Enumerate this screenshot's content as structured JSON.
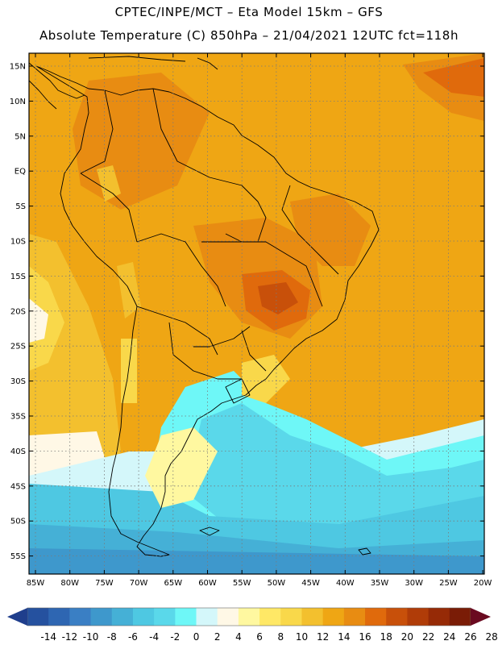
{
  "header": {
    "title_line1": "CPTEC/INPE/MCT –  Eta Model 15km – GFS",
    "title_line2": "Absolute Temperature (C) 850hPa – 21/04/2021 12UTC fct=118h"
  },
  "map": {
    "lat_labels": [
      "15N",
      "10N",
      "5N",
      "EQ",
      "5S",
      "10S",
      "15S",
      "20S",
      "25S",
      "30S",
      "35S",
      "40S",
      "45S",
      "50S",
      "55S"
    ],
    "lon_labels": [
      "85W",
      "80W",
      "75W",
      "70W",
      "65W",
      "60W",
      "55W",
      "50W",
      "45W",
      "40W",
      "35W",
      "30W",
      "25W",
      "20W"
    ]
  },
  "colorbar": {
    "colors": [
      "#1f3e8c",
      "#25519f",
      "#2e66b2",
      "#3a7fc4",
      "#3e98cc",
      "#45b0d6",
      "#4ec8e2",
      "#5ad8ea",
      "#6ef7f7",
      "#d4f7fa",
      "#fff8e6",
      "#fff8a0",
      "#ffe866",
      "#f9d84a",
      "#f3c02e",
      "#efa614",
      "#e88c12",
      "#e06a0c",
      "#c8500a",
      "#b03c08",
      "#962a06",
      "#7a1c06",
      "#6a0a20"
    ],
    "labels": [
      "-14",
      "-12",
      "-10",
      "-8",
      "-6",
      "-4",
      "-2",
      "0",
      "2",
      "4",
      "6",
      "8",
      "10",
      "12",
      "14",
      "16",
      "18",
      "20",
      "22",
      "24",
      "26",
      "28"
    ]
  }
}
